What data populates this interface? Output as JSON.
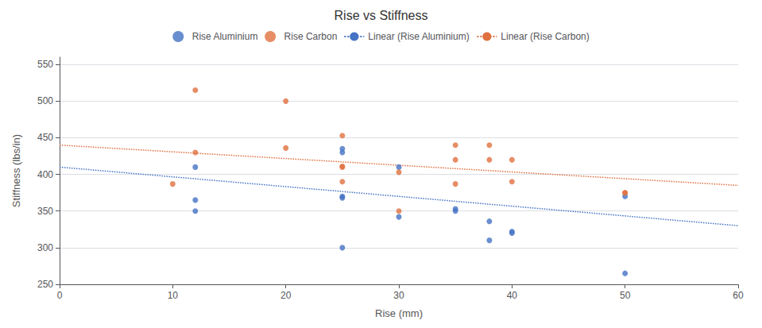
{
  "chart_data": {
    "type": "scatter",
    "title": "Rise vs Stiffness",
    "xlabel": "Rise (mm)",
    "ylabel": "Stiffness (lbs/in)",
    "xlim": [
      0,
      60
    ],
    "ylim": [
      250,
      560
    ],
    "xticks": [
      0,
      10,
      20,
      30,
      40,
      50,
      60
    ],
    "yticks": [
      250,
      300,
      350,
      400,
      450,
      500,
      550
    ],
    "grid": "y",
    "legend": "top",
    "series": [
      {
        "name": "Rise Aluminium",
        "type": "scatter",
        "marker": "circle",
        "color": "#4472c4",
        "x": [
          12,
          12,
          12,
          25,
          25,
          25,
          25,
          25,
          30,
          30,
          35,
          35,
          38,
          38,
          40,
          40,
          50,
          50
        ],
        "values": [
          410,
          365,
          350,
          435,
          430,
          370,
          368,
          300,
          410,
          342,
          353,
          350,
          336,
          310,
          322,
          320,
          265,
          370
        ]
      },
      {
        "name": "Rise Carbon",
        "type": "scatter",
        "marker": "circle",
        "color": "#e07040",
        "x": [
          10,
          12,
          12,
          20,
          20,
          25,
          25,
          25,
          25,
          30,
          30,
          35,
          35,
          35,
          38,
          38,
          40,
          40,
          50,
          50
        ],
        "values": [
          387,
          515,
          430,
          500,
          436,
          453,
          411,
          410,
          390,
          403,
          350,
          440,
          420,
          387,
          440,
          420,
          420,
          390,
          375,
          375
        ]
      },
      {
        "name": "Linear (Rise Aluminium)",
        "type": "line",
        "line_style": "dotted",
        "color": "#4472c4",
        "x": [
          0,
          60
        ],
        "values": [
          410,
          330
        ]
      },
      {
        "name": "Linear (Rise Carbon)",
        "type": "line",
        "line_style": "dotted",
        "color": "#e07040",
        "x": [
          0,
          60
        ],
        "values": [
          440,
          385
        ]
      }
    ]
  }
}
